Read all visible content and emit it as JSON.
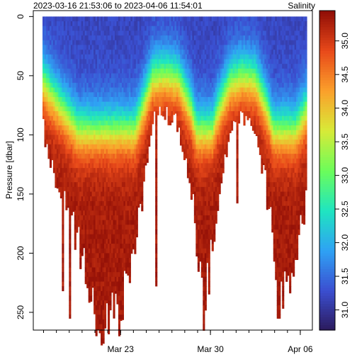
{
  "chart_data": {
    "type": "heatmap",
    "title": "2023-03-16 21:53:06 to 2023-04-06 11:54:01",
    "variable_label": "Salinity",
    "ylabel": "Pressure [dbar]",
    "xlabel": "",
    "x_ticks": [
      "Mar 23",
      "Mar 30",
      "Apr 06"
    ],
    "y_ticks": [
      0,
      50,
      100,
      150,
      200,
      250
    ],
    "ylim": [
      265,
      -5
    ],
    "y_reversed": true,
    "colorbar": {
      "ticks": [
        31.0,
        31.5,
        32.0,
        32.5,
        33.0,
        33.5,
        34.0,
        34.5,
        35.0
      ],
      "range": [
        30.7,
        35.45
      ],
      "colormap": "jet",
      "colors": [
        "#2c1a5c",
        "#3b4fd1",
        "#2fa2f4",
        "#1fe5c0",
        "#6cfd5a",
        "#d8ea38",
        "#fba02b",
        "#e8491a",
        "#8f0d06"
      ]
    },
    "profile_max_depth_dbar": [
      {
        "date": "2023-03-16",
        "depth": 76
      },
      {
        "date": "2023-03-17",
        "depth": 117
      },
      {
        "date": "2023-03-18",
        "depth": 152
      },
      {
        "date": "2023-03-19",
        "depth": 185
      },
      {
        "date": "2023-03-20",
        "depth": 232
      },
      {
        "date": "2023-03-21",
        "depth": 256
      },
      {
        "date": "2023-03-22",
        "depth": 254
      },
      {
        "date": "2023-03-23",
        "depth": 232
      },
      {
        "date": "2023-03-24",
        "depth": 165
      },
      {
        "date": "2023-03-25",
        "depth": 87
      },
      {
        "date": "2023-03-26",
        "depth": 82
      },
      {
        "date": "2023-03-27",
        "depth": 90
      },
      {
        "date": "2023-03-28",
        "depth": 150
      },
      {
        "date": "2023-03-29",
        "depth": 253
      },
      {
        "date": "2023-03-30",
        "depth": 160
      },
      {
        "date": "2023-03-31",
        "depth": 98
      },
      {
        "date": "2023-04-01",
        "depth": 84
      },
      {
        "date": "2023-04-02",
        "depth": 92
      },
      {
        "date": "2023-04-03",
        "depth": 155
      },
      {
        "date": "2023-04-04",
        "depth": 248
      },
      {
        "date": "2023-04-05",
        "depth": 200
      },
      {
        "date": "2023-04-06",
        "depth": 150
      }
    ],
    "surface_salinity": 31.2,
    "deep_salinity": 35.3
  }
}
